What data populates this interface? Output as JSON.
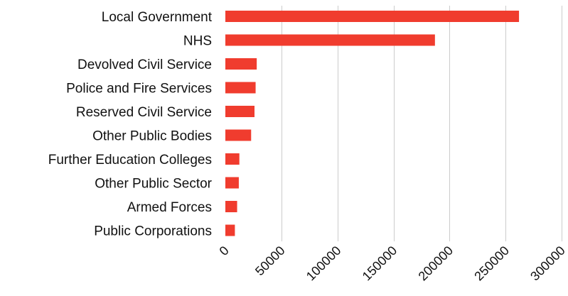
{
  "chart_data": {
    "type": "bar",
    "orientation": "horizontal",
    "categories": [
      "Local Government",
      "NHS",
      "Devolved Civil Service",
      "Police and Fire Services",
      "Reserved Civil Service",
      "Other Public Bodies",
      "Further Education Colleges",
      "Other Public Sector",
      "Armed Forces",
      "Public Corporations"
    ],
    "values": [
      262000,
      187000,
      28000,
      27000,
      26000,
      23000,
      12500,
      12000,
      10500,
      8500
    ],
    "xlim": [
      0,
      300000
    ],
    "xticks": [
      0,
      50000,
      100000,
      150000,
      200000,
      250000,
      300000
    ],
    "tick_labels": [
      "0",
      "50000",
      "100000",
      "150000",
      "200000",
      "250000",
      "300000"
    ],
    "grid": "vertical",
    "legend": "none",
    "colors": {
      "bar": "#f03c2e",
      "grid": "#cccccc",
      "text": "#111111"
    }
  }
}
